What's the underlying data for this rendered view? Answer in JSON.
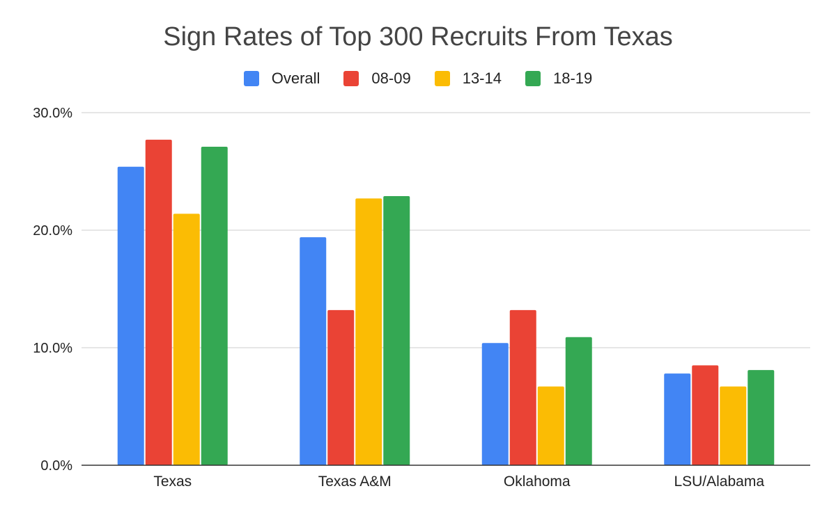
{
  "chart_data": {
    "type": "bar",
    "title": "Sign Rates of Top 300 Recruits From Texas",
    "xlabel": "",
    "ylabel": "",
    "categories": [
      "Texas",
      "Texas A&M",
      "Oklahoma",
      "LSU/Alabama"
    ],
    "series": [
      {
        "name": "Overall",
        "color": "#4285f4",
        "values": [
          25.4,
          19.4,
          10.4,
          7.8
        ]
      },
      {
        "name": "08-09",
        "color": "#ea4335",
        "values": [
          27.7,
          13.2,
          13.2,
          8.5
        ]
      },
      {
        "name": "13-14",
        "color": "#fbbc04",
        "values": [
          21.4,
          22.7,
          6.7,
          6.7
        ]
      },
      {
        "name": "18-19",
        "color": "#34a853",
        "values": [
          27.1,
          22.9,
          10.9,
          8.1
        ]
      }
    ],
    "ylim": [
      0,
      30
    ],
    "yticks": [
      "0.0%",
      "10.0%",
      "20.0%",
      "30.0%"
    ],
    "grid": true,
    "legend_position": "top-center"
  }
}
